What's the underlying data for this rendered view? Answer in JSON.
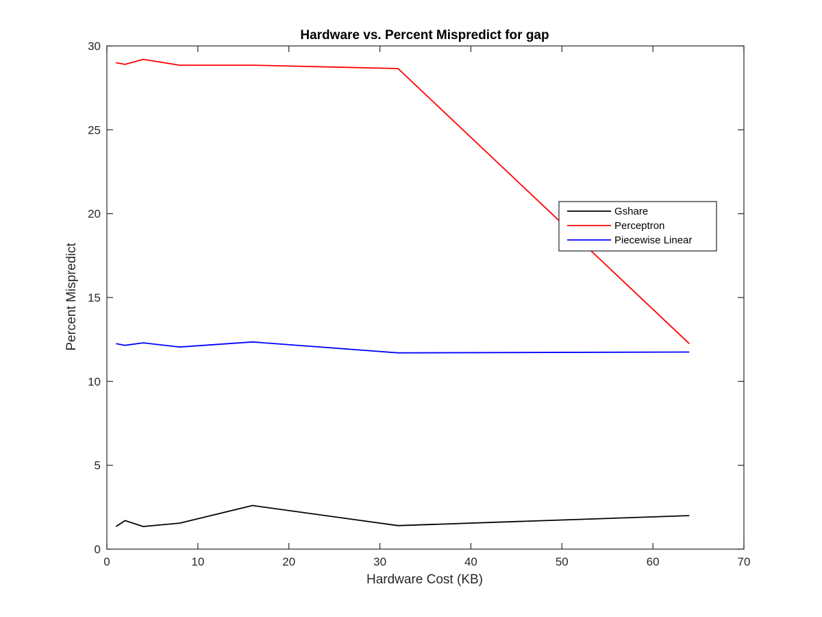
{
  "chart_data": {
    "type": "line",
    "title": "Hardware vs. Percent Mispredict for gap",
    "xlabel": "Hardware Cost (KB)",
    "ylabel": "Percent Mispredict",
    "xlim": [
      0,
      70
    ],
    "ylim": [
      0,
      30
    ],
    "xticks": [
      0,
      10,
      20,
      30,
      40,
      50,
      60,
      70
    ],
    "yticks": [
      0,
      5,
      10,
      15,
      20,
      25,
      30
    ],
    "grid": false,
    "legend_position": "center-right",
    "x": [
      1,
      2,
      4,
      8,
      16,
      32,
      64
    ],
    "series": [
      {
        "name": "Gshare",
        "color": "#000000",
        "values": [
          1.35,
          1.7,
          1.35,
          1.55,
          2.6,
          1.4,
          2.0
        ]
      },
      {
        "name": "Perceptron",
        "color": "#ff0000",
        "values": [
          29.0,
          28.9,
          29.2,
          28.85,
          28.85,
          28.65,
          12.25
        ]
      },
      {
        "name": "Piecewise Linear",
        "color": "#0000ff",
        "values": [
          12.25,
          12.15,
          12.3,
          12.05,
          12.35,
          11.7,
          11.75
        ]
      }
    ]
  }
}
